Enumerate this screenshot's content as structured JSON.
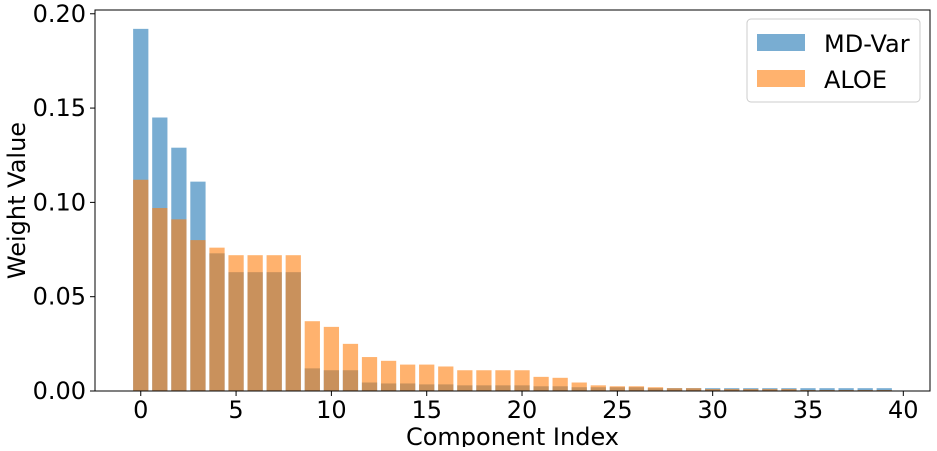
{
  "chart_data": {
    "type": "bar",
    "xlabel": "Component Index",
    "ylabel": "Weight Value",
    "xlim": [
      -2.4,
      41.4
    ],
    "ylim": [
      0,
      0.202
    ],
    "xticks": [
      0,
      5,
      10,
      15,
      20,
      25,
      30,
      35,
      40
    ],
    "yticks": [
      0.0,
      0.05,
      0.1,
      0.15,
      0.2
    ],
    "ytick_labels": [
      "0.00",
      "0.05",
      "0.10",
      "0.15",
      "0.20"
    ],
    "legend_position": "top-right",
    "grid": false,
    "categories": [
      0,
      1,
      2,
      3,
      4,
      5,
      6,
      7,
      8,
      9,
      10,
      11,
      12,
      13,
      14,
      15,
      16,
      17,
      18,
      19,
      20,
      21,
      22,
      23,
      24,
      25,
      26,
      27,
      28,
      29,
      30,
      31,
      32,
      33,
      34,
      35,
      36,
      37,
      38,
      39
    ],
    "series": [
      {
        "name": "MD-Var",
        "color": "#1f77b4",
        "opacity": 0.6,
        "values": [
          0.192,
          0.145,
          0.129,
          0.111,
          0.073,
          0.063,
          0.063,
          0.063,
          0.063,
          0.012,
          0.011,
          0.011,
          0.0045,
          0.004,
          0.004,
          0.0035,
          0.0035,
          0.003,
          0.003,
          0.003,
          0.003,
          0.0025,
          0.0025,
          0.002,
          0.002,
          0.002,
          0.002,
          0.0015,
          0.0015,
          0.0015,
          0.0015,
          0.0015,
          0.0015,
          0.0015,
          0.0015,
          0.0015,
          0.0015,
          0.0015,
          0.0015,
          0.0015
        ]
      },
      {
        "name": "ALOE",
        "color": "#ff7f0e",
        "opacity": 0.6,
        "values": [
          0.112,
          0.097,
          0.091,
          0.08,
          0.076,
          0.072,
          0.072,
          0.072,
          0.072,
          0.037,
          0.034,
          0.025,
          0.018,
          0.016,
          0.014,
          0.014,
          0.013,
          0.011,
          0.011,
          0.011,
          0.011,
          0.0075,
          0.007,
          0.0045,
          0.003,
          0.0025,
          0.0025,
          0.002,
          0.0015,
          0.0015,
          0.001,
          0.001,
          0.001,
          0.001,
          0.001,
          0.0005,
          0.0005,
          0.0005,
          0.0005,
          0.0005
        ]
      }
    ]
  }
}
